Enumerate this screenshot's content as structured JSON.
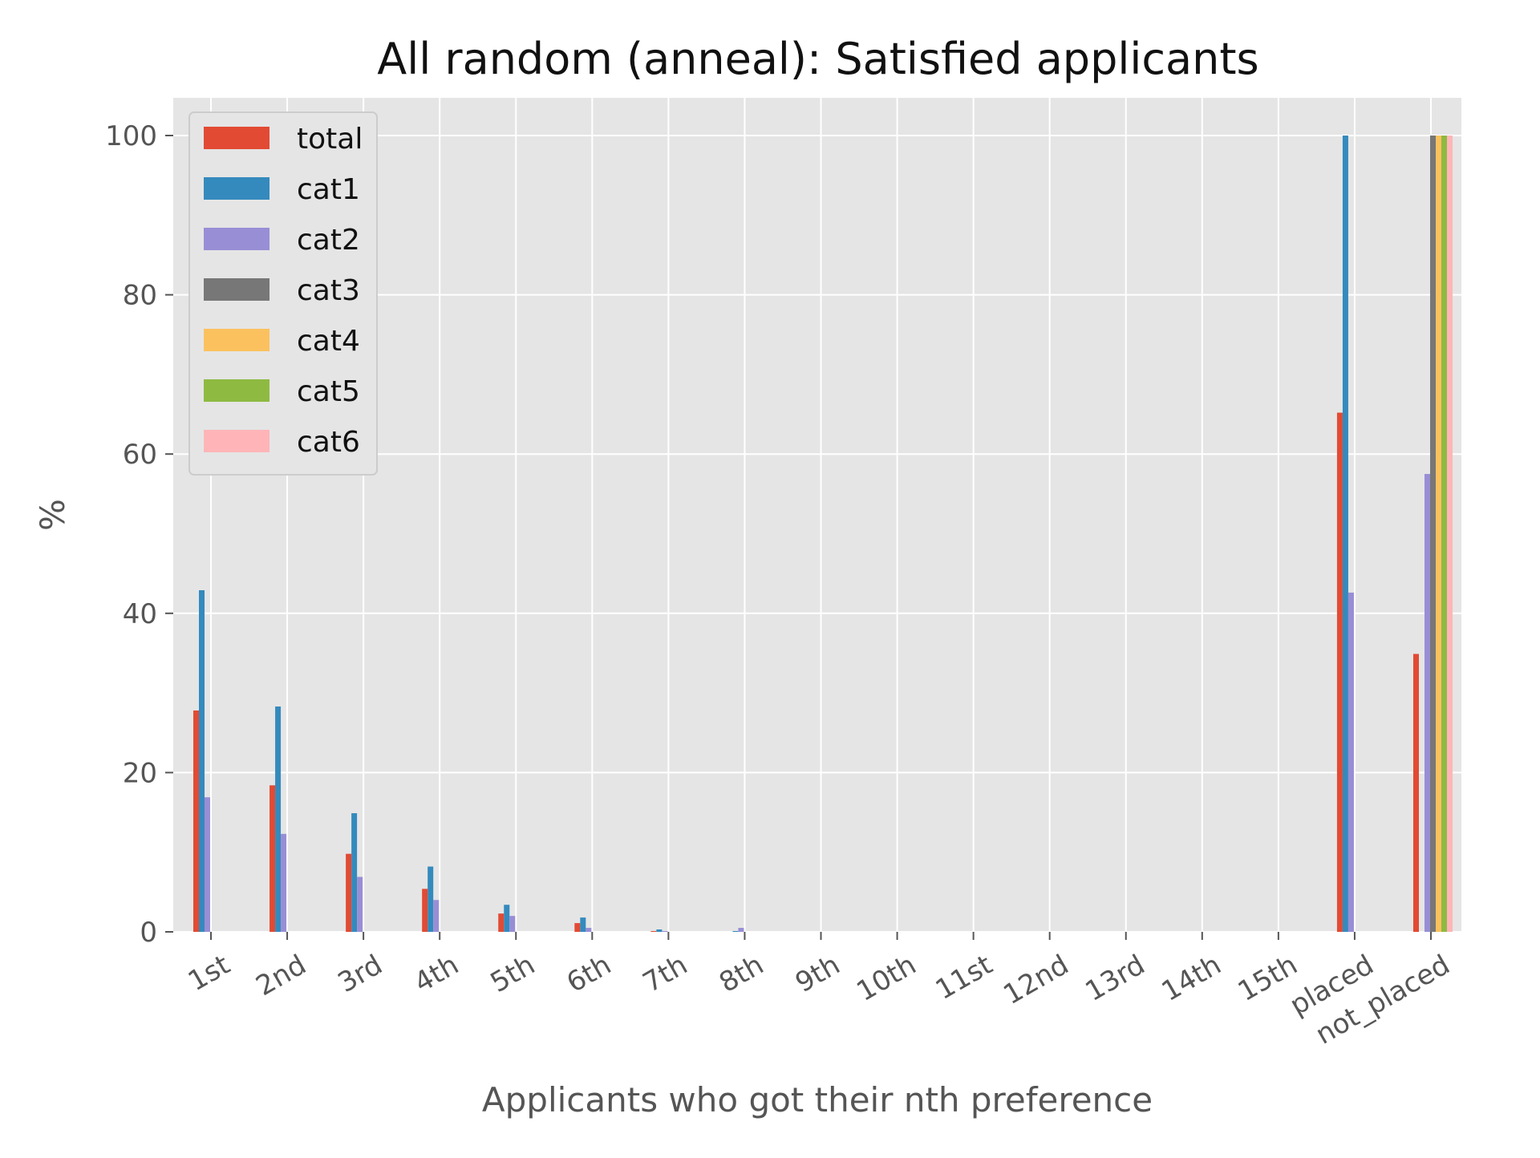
{
  "chart_data": {
    "type": "bar",
    "title": "All random (anneal): Satisfied applicants",
    "xlabel": "Applicants who got their nth preference",
    "ylabel": "%",
    "categories": [
      "1st",
      "2nd",
      "3rd",
      "4th",
      "5th",
      "6th",
      "7th",
      "8th",
      "9th",
      "10th",
      "11st",
      "12nd",
      "13rd",
      "14th",
      "15th",
      "placed",
      "not_placed"
    ],
    "ylim": [
      0,
      105
    ],
    "yticks": [
      0,
      20,
      40,
      60,
      80,
      100
    ],
    "grid": true,
    "legend_position": "top-left",
    "series": [
      {
        "name": "total",
        "color": "#E24A33",
        "values": [
          27.8,
          18.4,
          9.8,
          5.4,
          2.3,
          1.1,
          0.1,
          0.0,
          0,
          0,
          0,
          0,
          0,
          0,
          0,
          65.2,
          34.9
        ]
      },
      {
        "name": "cat1",
        "color": "#348ABD",
        "values": [
          42.9,
          28.3,
          14.9,
          8.2,
          3.4,
          1.8,
          0.3,
          0.1,
          0,
          0,
          0,
          0,
          0,
          0,
          0,
          100,
          0
        ]
      },
      {
        "name": "cat2",
        "color": "#988ED5",
        "values": [
          16.9,
          12.3,
          6.9,
          4.0,
          2.0,
          0.5,
          0.1,
          0.5,
          0,
          0,
          0,
          0,
          0,
          0,
          0,
          42.6,
          57.5
        ]
      },
      {
        "name": "cat3",
        "color": "#777777",
        "values": [
          0,
          0,
          0,
          0,
          0,
          0,
          0,
          0,
          0,
          0,
          0,
          0,
          0,
          0,
          0,
          0,
          100
        ]
      },
      {
        "name": "cat4",
        "color": "#FBC15E",
        "values": [
          0,
          0,
          0,
          0,
          0,
          0,
          0,
          0,
          0,
          0,
          0,
          0,
          0,
          0,
          0,
          0,
          100
        ]
      },
      {
        "name": "cat5",
        "color": "#8EBA42",
        "values": [
          0,
          0,
          0,
          0,
          0,
          0,
          0,
          0,
          0,
          0,
          0,
          0,
          0,
          0,
          0,
          0,
          100
        ]
      },
      {
        "name": "cat6",
        "color": "#FFB5B8",
        "values": [
          0,
          0,
          0,
          0,
          0,
          0,
          0,
          0,
          0,
          0,
          0,
          0,
          0,
          0,
          0,
          0,
          100
        ]
      }
    ]
  }
}
